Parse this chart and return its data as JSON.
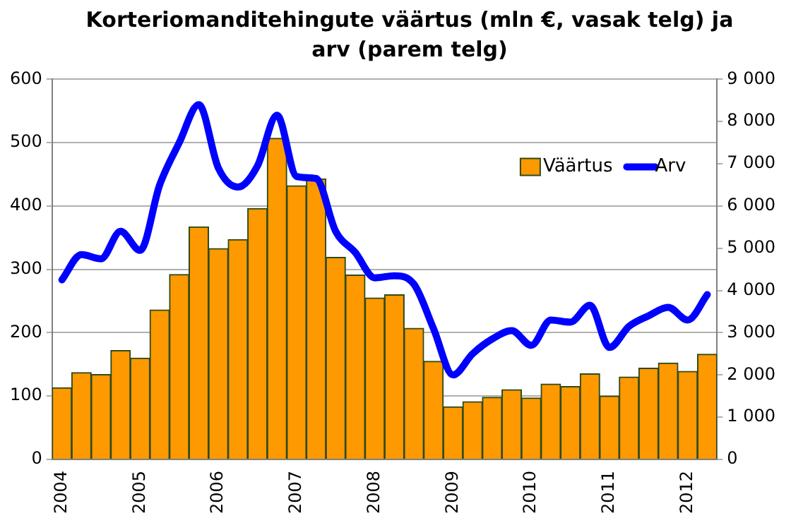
{
  "chart_data": {
    "type": "bar",
    "title": "Korteriomanditehingute väärtus (mln €, vasak telg) ja arv (parem telg)",
    "categories": [
      "2004",
      null,
      null,
      null,
      "2005",
      null,
      null,
      null,
      "2006",
      null,
      null,
      null,
      "2007",
      null,
      null,
      null,
      "2008",
      null,
      null,
      null,
      "2009",
      null,
      null,
      null,
      "2010",
      null,
      null,
      null,
      "2011",
      null,
      null,
      null,
      "2012",
      null
    ],
    "series": [
      {
        "name": "Väärtus",
        "color": "#ff9900",
        "values": [
          113,
          137,
          134,
          172,
          160,
          236,
          292,
          367,
          333,
          347,
          396,
          507,
          432,
          443,
          319,
          291,
          255,
          260,
          207,
          155,
          83,
          91,
          98,
          110,
          97,
          119,
          115,
          135,
          100,
          130,
          144,
          152,
          139,
          166
        ]
      },
      {
        "name": "Arv",
        "type": "line",
        "axis": "y2",
        "color": "#0000ff",
        "values": [
          4250,
          4850,
          4750,
          5400,
          4950,
          6500,
          7500,
          8400,
          6900,
          6450,
          6950,
          8150,
          6700,
          6650,
          5400,
          4900,
          4300,
          4350,
          4150,
          3100,
          2000,
          2500,
          2850,
          3050,
          2700,
          3300,
          3250,
          3650,
          2650,
          3150,
          3400,
          3600,
          3300,
          3900
        ]
      }
    ],
    "ylim": [
      0,
      600
    ],
    "yticks": [
      0,
      100,
      200,
      300,
      400,
      500,
      600
    ],
    "y2lim": [
      0,
      9000
    ],
    "y2ticks": [
      0,
      {
        "value": 1000,
        "label": "1 000"
      },
      {
        "value": 2000,
        "label": "2 000"
      },
      {
        "value": 3000,
        "label": "3 000"
      },
      {
        "value": 4000,
        "label": "4 000"
      },
      {
        "value": 5000,
        "label": "5 000"
      },
      {
        "value": 6000,
        "label": "6 000"
      },
      {
        "value": 7000,
        "label": "7 000"
      },
      {
        "value": 8000,
        "label": "8 000"
      },
      {
        "value": 9000,
        "label": "9 000"
      }
    ],
    "grid": "y",
    "legend": "top right",
    "marker": "none"
  }
}
